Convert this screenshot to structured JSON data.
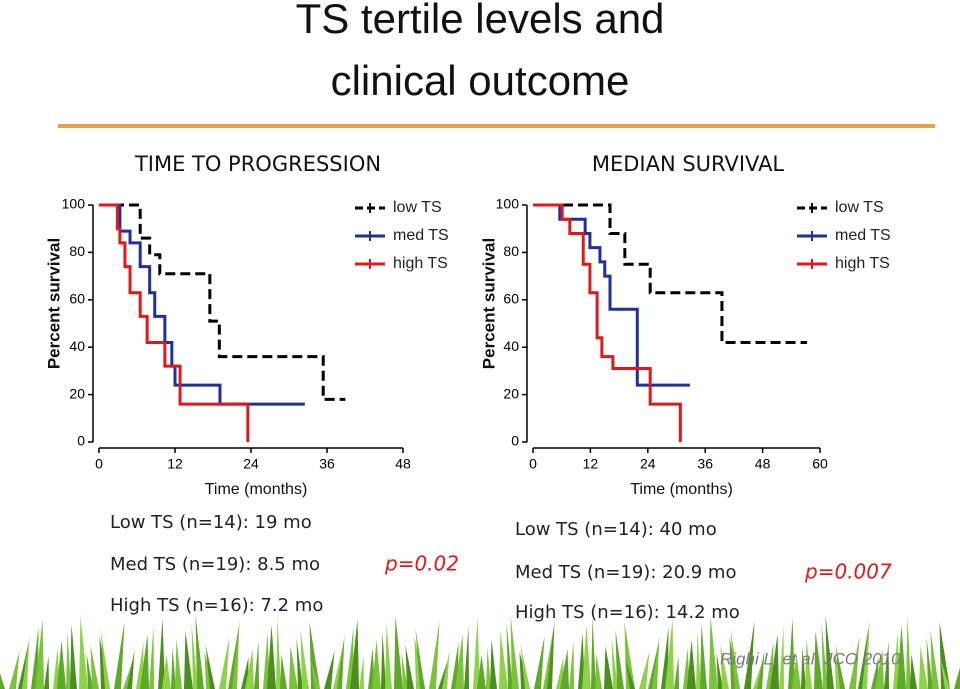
{
  "header": {
    "title_line1": "TS tertile levels and",
    "title_line2": "clinical outcome"
  },
  "citation": "Righi L. et al. JCO 2010",
  "chart_data": [
    {
      "type": "step",
      "title": "TIME TO PROGRESSION",
      "x_label": "Time (months)",
      "y_label": "Percent survival",
      "xlim": [
        0,
        48
      ],
      "xticks": [
        0,
        12,
        24,
        36,
        48
      ],
      "ylim": [
        0,
        100
      ],
      "yticks": [
        0,
        20,
        40,
        60,
        80,
        100
      ],
      "legend": "top-right",
      "series": [
        {
          "name": "low TS",
          "color": "#000000",
          "line_style": "dashed",
          "x": [
            0,
            6.5,
            8,
            9.6,
            17.5,
            19,
            35.4,
            38.9
          ],
          "values": [
            100,
            86,
            79,
            71,
            51,
            36,
            18,
            18
          ]
        },
        {
          "name": "med TS",
          "color": "#1f2f9e",
          "line_style": "solid",
          "x": [
            0,
            3.3,
            4.9,
            6.5,
            8,
            8.8,
            10.4,
            11.5,
            12,
            19.1,
            32.5
          ],
          "values": [
            100,
            89,
            84,
            74,
            63,
            53,
            42,
            32,
            24,
            16,
            16
          ]
        },
        {
          "name": "high TS",
          "color": "#e0181c",
          "line_style": "solid",
          "x": [
            0,
            2.9,
            3.3,
            4.1,
            4.9,
            6.5,
            7.6,
            10.4,
            12.8,
            23.5
          ],
          "values": [
            100,
            90,
            84,
            74,
            63,
            53,
            42,
            32,
            16,
            0
          ]
        }
      ],
      "annotations": [
        "Low TS (n=14): 19 mo",
        "Med TS (n=19): 8.5 mo",
        "High TS (n=16): 7.2 mo"
      ],
      "p_value": "p=0.02"
    },
    {
      "type": "step",
      "title": "MEDIAN SURVIVAL",
      "x_label": "Time (months)",
      "y_label": "Percent survival",
      "xlim": [
        0,
        60
      ],
      "xticks": [
        0,
        12,
        24,
        36,
        48,
        60
      ],
      "ylim": [
        0,
        100
      ],
      "yticks": [
        0,
        20,
        40,
        60,
        80,
        100
      ],
      "legend": "top-right",
      "series": [
        {
          "name": "low TS",
          "color": "#000000",
          "line_style": "dashed",
          "x": [
            0,
            16.1,
            19.2,
            24.5,
            39.5,
            57.3
          ],
          "values": [
            100,
            88,
            75,
            63,
            42,
            42
          ]
        },
        {
          "name": "med TS",
          "color": "#1f2f9e",
          "line_style": "solid",
          "x": [
            0,
            5.6,
            10.9,
            11.9,
            14,
            15,
            16.1,
            21.8,
            32.8
          ],
          "values": [
            100,
            94,
            88,
            82,
            76,
            70,
            56,
            24,
            24
          ]
        },
        {
          "name": "high TS",
          "color": "#e0181c",
          "line_style": "solid",
          "x": [
            0,
            6.1,
            7.7,
            10.5,
            11.9,
            13.4,
            14.4,
            16.7,
            24.5,
            30.8
          ],
          "values": [
            100,
            94,
            88,
            75,
            63,
            44,
            36,
            31,
            16,
            0
          ]
        }
      ],
      "annotations": [
        "Low TS (n=14): 40 mo",
        "Med TS (n=19): 20.9 mo",
        "High TS (n=16): 14.2 mo"
      ],
      "p_value": "p=0.007"
    }
  ]
}
